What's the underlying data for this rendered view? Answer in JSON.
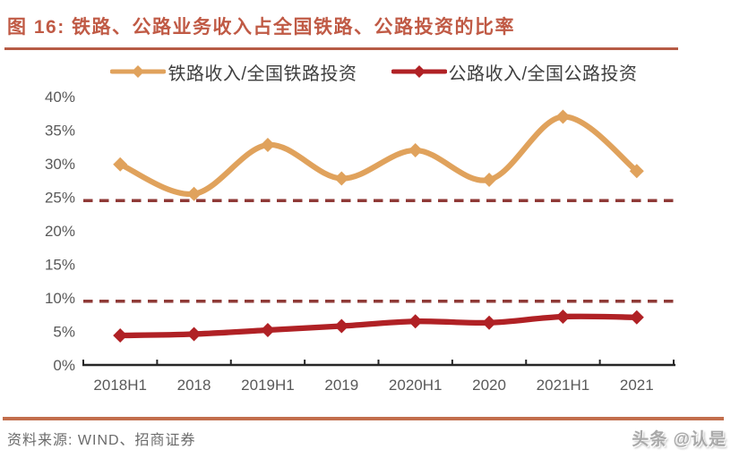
{
  "header": {
    "title": "图 16:  铁路、公路业务收入占全国铁路、公路投资的比率"
  },
  "chart_data": {
    "type": "line",
    "categories": [
      "2018H1",
      "2018",
      "2019H1",
      "2019",
      "2020H1",
      "2020",
      "2021H1",
      "2021"
    ],
    "series": [
      {
        "name": "铁路收入/全国铁路投资",
        "color": "#E0A25C",
        "values": [
          29.9,
          25.5,
          32.8,
          27.8,
          32.0,
          27.6,
          37.0,
          28.9
        ]
      },
      {
        "name": "公路收入/全国公路投资",
        "color": "#B02125",
        "values": [
          4.4,
          4.6,
          5.2,
          5.8,
          6.5,
          6.3,
          7.2,
          7.1
        ]
      }
    ],
    "reference_lines": [
      {
        "value": 24.5,
        "color": "#8F3A37",
        "style": "dashed"
      },
      {
        "value": 9.5,
        "color": "#8F3A37",
        "style": "dashed"
      }
    ],
    "ylim": [
      0,
      40
    ],
    "ytick_step": 5,
    "ytick_labels": [
      "0%",
      "5%",
      "10%",
      "15%",
      "20%",
      "25%",
      "30%",
      "35%",
      "40%"
    ],
    "legend_position": "top",
    "grid": false
  },
  "footer": {
    "source": "资料来源: WIND、招商证券",
    "watermark": "头条 @认是"
  },
  "colors": {
    "title": "#C05A45",
    "title_rule": "#B65B45",
    "source_rule": "#C26E4C",
    "axis": "#262626",
    "tick_label": "#595959"
  }
}
